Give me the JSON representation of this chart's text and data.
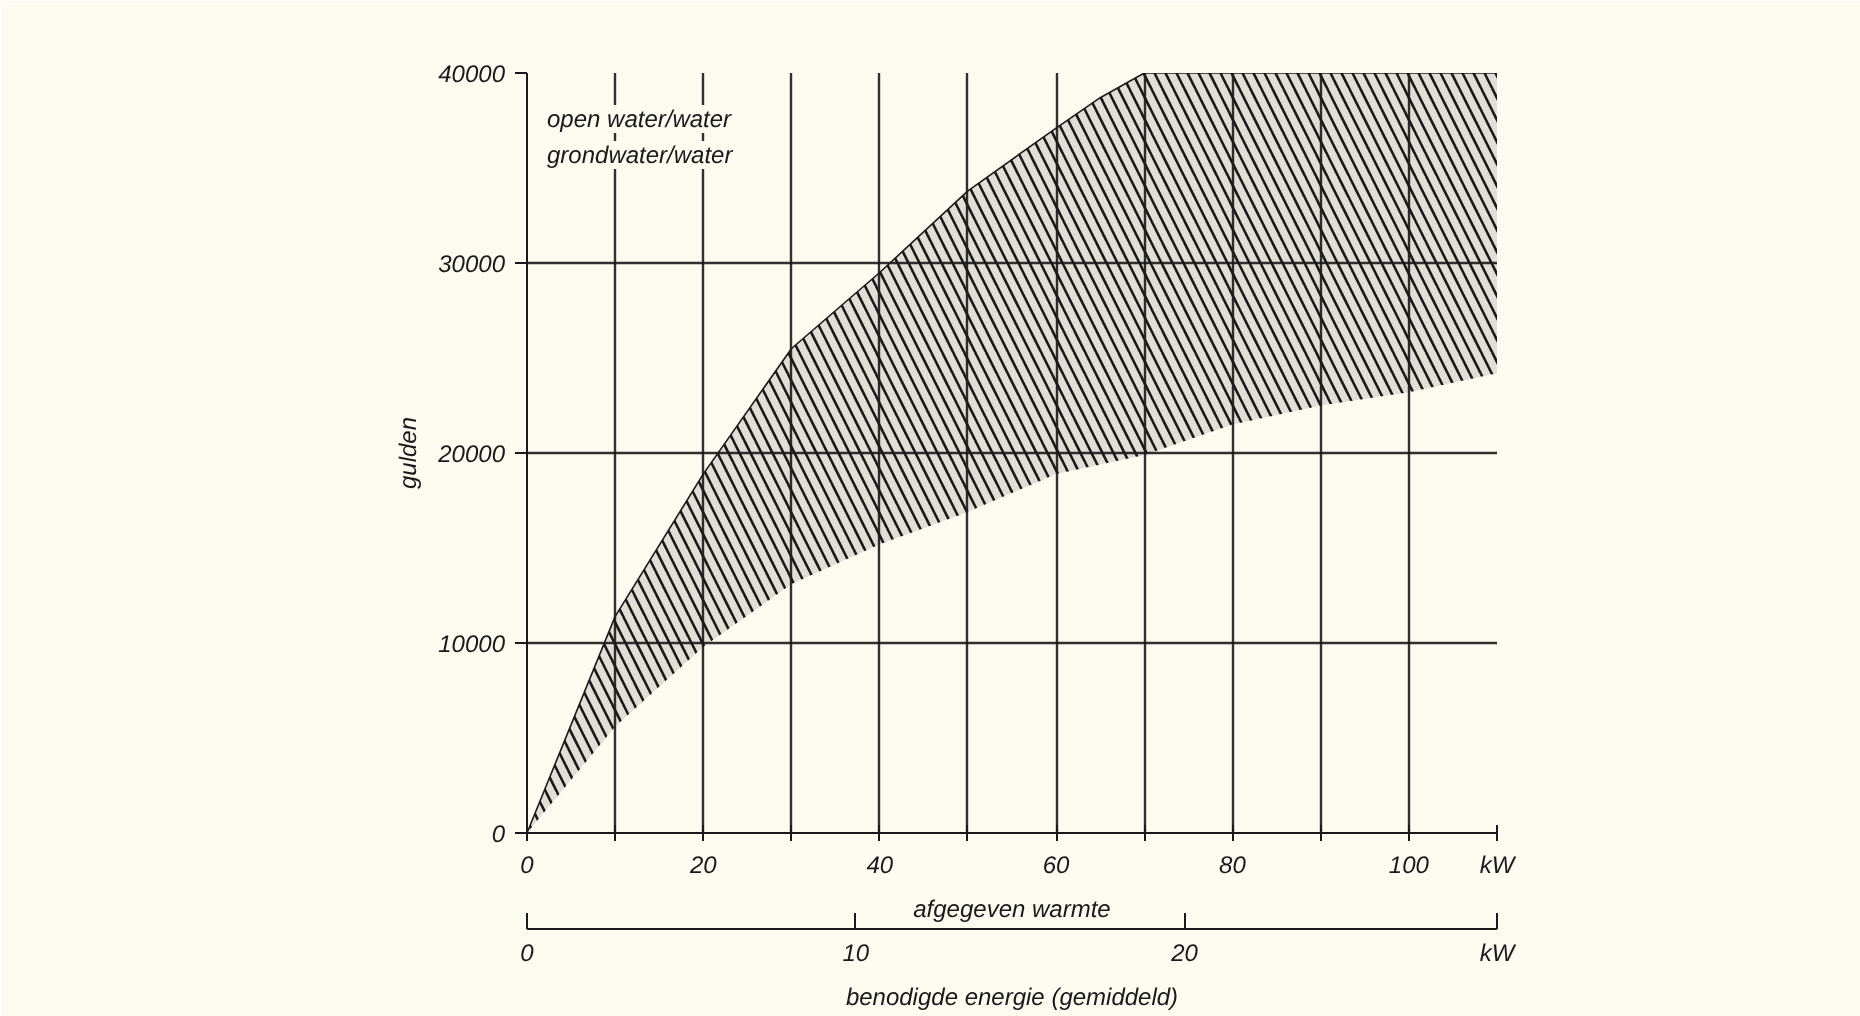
{
  "chart_data": {
    "type": "line",
    "x": [
      0,
      10,
      20,
      30,
      40,
      50,
      60,
      65,
      70,
      80,
      90,
      100,
      110
    ],
    "series": [
      {
        "color": "#1a1a1a",
        "values": [
          0,
          11400,
          18900,
          25500,
          29500,
          33800,
          37100,
          38700,
          40000,
          40000,
          40000,
          40000,
          40000
        ],
        "lower": [
          0,
          5600,
          9800,
          13100,
          15200,
          16900,
          18900,
          19400,
          19900,
          21500,
          22500,
          23200,
          24200
        ],
        "upper": [
          0,
          11400,
          18900,
          25500,
          29500,
          33800,
          37100,
          38700,
          40000,
          40000,
          40000,
          40000,
          40000
        ]
      }
    ],
    "xlabel": "afgegeven warmte",
    "ylabel": "gulden",
    "x2label": "benodigde energie (gemiddeld)",
    "xlim": [
      0,
      110
    ],
    "ylim": [
      0,
      40000
    ],
    "xticks": [
      0,
      {
        "value": 10,
        "label": null
      },
      20,
      {
        "value": 30,
        "label": null
      },
      40,
      {
        "value": 50,
        "label": null
      },
      60,
      {
        "value": 70,
        "label": null
      },
      80,
      {
        "value": 90,
        "label": null
      },
      100,
      {
        "value": 110,
        "label": "kW"
      }
    ],
    "yticks": [
      0,
      10000,
      20000,
      30000,
      40000
    ],
    "x2lim": [
      0,
      29.5
    ],
    "x2ticks": [
      0,
      10,
      20,
      {
        "value": 29.5,
        "label": "kW"
      }
    ],
    "grid": true,
    "annotations": [
      "open water/water",
      "grondwater/water"
    ]
  }
}
